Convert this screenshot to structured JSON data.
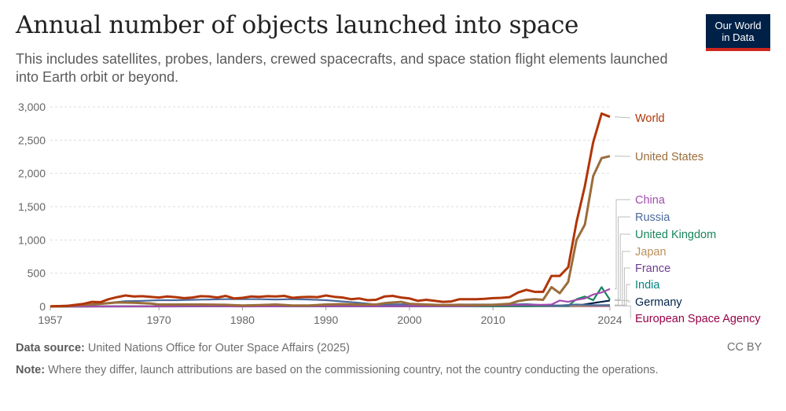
{
  "header": {
    "title": "Annual number of objects launched into space",
    "subtitle": "This includes satellites, probes, landers, crewed spacecrafts, and space station flight elements launched into Earth orbit or beyond.",
    "logo_line1": "Our World",
    "logo_line2": "in Data"
  },
  "footer": {
    "source_label": "Data source:",
    "source_text": "United Nations Office for Outer Space Affairs (2025)",
    "note_label": "Note:",
    "note_text": "Where they differ, launch attributions are based on the commissioning country, not the country conducting the operations.",
    "license": "CC BY"
  },
  "chart_data": {
    "type": "line",
    "title": "Annual number of objects launched into space",
    "xlabel": "",
    "ylabel": "",
    "xlim": [
      1957,
      2024
    ],
    "ylim": [
      0,
      3000
    ],
    "x_ticks": [
      "1957",
      "1970",
      "1980",
      "1990",
      "2000",
      "2010",
      "2024"
    ],
    "y_ticks": [
      "0",
      "500",
      "1,000",
      "1,500",
      "2,000",
      "2,500",
      "3,000"
    ],
    "y_tick_values": [
      0,
      500,
      1000,
      1500,
      2000,
      2500,
      3000
    ],
    "x_tick_values": [
      1957,
      1970,
      1980,
      1990,
      2000,
      2010,
      2024
    ],
    "grid": true,
    "series": [
      {
        "name": "World",
        "color": "#b13507",
        "points": [
          [
            1957,
            2
          ],
          [
            1959,
            10
          ],
          [
            1961,
            40
          ],
          [
            1962,
            70
          ],
          [
            1963,
            65
          ],
          [
            1964,
            110
          ],
          [
            1965,
            140
          ],
          [
            1966,
            165
          ],
          [
            1967,
            150
          ],
          [
            1968,
            155
          ],
          [
            1969,
            145
          ],
          [
            1970,
            135
          ],
          [
            1971,
            150
          ],
          [
            1972,
            140
          ],
          [
            1973,
            125
          ],
          [
            1974,
            135
          ],
          [
            1975,
            155
          ],
          [
            1976,
            150
          ],
          [
            1977,
            135
          ],
          [
            1978,
            160
          ],
          [
            1979,
            120
          ],
          [
            1980,
            130
          ],
          [
            1981,
            150
          ],
          [
            1982,
            145
          ],
          [
            1983,
            155
          ],
          [
            1984,
            150
          ],
          [
            1985,
            160
          ],
          [
            1986,
            130
          ],
          [
            1987,
            140
          ],
          [
            1988,
            145
          ],
          [
            1989,
            140
          ],
          [
            1990,
            165
          ],
          [
            1991,
            145
          ],
          [
            1992,
            135
          ],
          [
            1993,
            110
          ],
          [
            1994,
            120
          ],
          [
            1995,
            95
          ],
          [
            1996,
            100
          ],
          [
            1997,
            150
          ],
          [
            1998,
            160
          ],
          [
            1999,
            135
          ],
          [
            2000,
            120
          ],
          [
            2001,
            85
          ],
          [
            2002,
            100
          ],
          [
            2003,
            85
          ],
          [
            2004,
            70
          ],
          [
            2005,
            75
          ],
          [
            2006,
            110
          ],
          [
            2007,
            110
          ],
          [
            2008,
            110
          ],
          [
            2009,
            115
          ],
          [
            2010,
            125
          ],
          [
            2011,
            130
          ],
          [
            2012,
            140
          ],
          [
            2013,
            210
          ],
          [
            2014,
            250
          ],
          [
            2015,
            220
          ],
          [
            2016,
            220
          ],
          [
            2017,
            460
          ],
          [
            2018,
            460
          ],
          [
            2019,
            590
          ],
          [
            2020,
            1270
          ],
          [
            2021,
            1810
          ],
          [
            2022,
            2470
          ],
          [
            2023,
            2900
          ],
          [
            2024,
            2850
          ]
        ]
      },
      {
        "name": "United States",
        "color": "#9a6d3a",
        "points": [
          [
            1957,
            0
          ],
          [
            1959,
            10
          ],
          [
            1961,
            25
          ],
          [
            1963,
            40
          ],
          [
            1965,
            60
          ],
          [
            1967,
            55
          ],
          [
            1969,
            45
          ],
          [
            1970,
            30
          ],
          [
            1972,
            30
          ],
          [
            1975,
            30
          ],
          [
            1978,
            25
          ],
          [
            1980,
            15
          ],
          [
            1982,
            20
          ],
          [
            1984,
            30
          ],
          [
            1986,
            15
          ],
          [
            1988,
            15
          ],
          [
            1990,
            30
          ],
          [
            1992,
            35
          ],
          [
            1994,
            30
          ],
          [
            1996,
            30
          ],
          [
            1997,
            50
          ],
          [
            1998,
            60
          ],
          [
            1999,
            70
          ],
          [
            2000,
            40
          ],
          [
            2002,
            30
          ],
          [
            2004,
            20
          ],
          [
            2006,
            25
          ],
          [
            2008,
            20
          ],
          [
            2010,
            25
          ],
          [
            2012,
            40
          ],
          [
            2013,
            80
          ],
          [
            2014,
            100
          ],
          [
            2015,
            110
          ],
          [
            2016,
            100
          ],
          [
            2017,
            290
          ],
          [
            2018,
            200
          ],
          [
            2019,
            370
          ],
          [
            2020,
            1000
          ],
          [
            2021,
            1230
          ],
          [
            2022,
            1960
          ],
          [
            2023,
            2230
          ],
          [
            2024,
            2260
          ]
        ]
      },
      {
        "name": "China",
        "color": "#a34bb0",
        "points": [
          [
            1957,
            0
          ],
          [
            1970,
            1
          ],
          [
            1975,
            3
          ],
          [
            1980,
            0
          ],
          [
            1985,
            2
          ],
          [
            1990,
            5
          ],
          [
            1995,
            2
          ],
          [
            2000,
            5
          ],
          [
            2005,
            5
          ],
          [
            2008,
            10
          ],
          [
            2010,
            18
          ],
          [
            2012,
            20
          ],
          [
            2014,
            25
          ],
          [
            2016,
            25
          ],
          [
            2017,
            30
          ],
          [
            2018,
            90
          ],
          [
            2019,
            70
          ],
          [
            2020,
            100
          ],
          [
            2021,
            120
          ],
          [
            2022,
            180
          ],
          [
            2023,
            210
          ],
          [
            2024,
            265
          ]
        ]
      },
      {
        "name": "Russia",
        "color": "#4c6a9c",
        "points": [
          [
            1957,
            2
          ],
          [
            1960,
            20
          ],
          [
            1962,
            30
          ],
          [
            1964,
            55
          ],
          [
            1966,
            80
          ],
          [
            1968,
            85
          ],
          [
            1970,
            95
          ],
          [
            1972,
            95
          ],
          [
            1974,
            100
          ],
          [
            1976,
            105
          ],
          [
            1978,
            110
          ],
          [
            1980,
            110
          ],
          [
            1982,
            110
          ],
          [
            1984,
            105
          ],
          [
            1986,
            110
          ],
          [
            1988,
            105
          ],
          [
            1990,
            95
          ],
          [
            1992,
            75
          ],
          [
            1994,
            55
          ],
          [
            1996,
            30
          ],
          [
            1998,
            30
          ],
          [
            2000,
            35
          ],
          [
            2002,
            25
          ],
          [
            2004,
            25
          ],
          [
            2006,
            30
          ],
          [
            2008,
            30
          ],
          [
            2010,
            30
          ],
          [
            2012,
            30
          ],
          [
            2014,
            35
          ],
          [
            2016,
            20
          ],
          [
            2018,
            15
          ],
          [
            2020,
            30
          ],
          [
            2022,
            20
          ],
          [
            2024,
            20
          ]
        ]
      },
      {
        "name": "United Kingdom",
        "color": "#18855b",
        "points": [
          [
            1957,
            0
          ],
          [
            1962,
            1
          ],
          [
            1970,
            2
          ],
          [
            1980,
            1
          ],
          [
            1990,
            3
          ],
          [
            2000,
            3
          ],
          [
            2010,
            3
          ],
          [
            2014,
            5
          ],
          [
            2016,
            8
          ],
          [
            2018,
            12
          ],
          [
            2019,
            10
          ],
          [
            2020,
            110
          ],
          [
            2021,
            150
          ],
          [
            2022,
            95
          ],
          [
            2023,
            290
          ],
          [
            2024,
            100
          ]
        ]
      },
      {
        "name": "Japan",
        "color": "#bc8e5a",
        "points": [
          [
            1957,
            0
          ],
          [
            1970,
            2
          ],
          [
            1975,
            5
          ],
          [
            1980,
            5
          ],
          [
            1985,
            8
          ],
          [
            1990,
            10
          ],
          [
            1995,
            8
          ],
          [
            2000,
            5
          ],
          [
            2005,
            7
          ],
          [
            2010,
            10
          ],
          [
            2015,
            15
          ],
          [
            2020,
            12
          ],
          [
            2024,
            15
          ]
        ]
      },
      {
        "name": "France",
        "color": "#6d3e91",
        "points": [
          [
            1957,
            0
          ],
          [
            1965,
            2
          ],
          [
            1970,
            3
          ],
          [
            1980,
            3
          ],
          [
            1990,
            8
          ],
          [
            2000,
            10
          ],
          [
            2010,
            8
          ],
          [
            2020,
            10
          ],
          [
            2024,
            12
          ]
        ]
      },
      {
        "name": "India",
        "color": "#00847e",
        "points": [
          [
            1957,
            0
          ],
          [
            1975,
            1
          ],
          [
            1980,
            2
          ],
          [
            1990,
            3
          ],
          [
            2000,
            4
          ],
          [
            2010,
            6
          ],
          [
            2017,
            10
          ],
          [
            2020,
            8
          ],
          [
            2024,
            20
          ]
        ]
      },
      {
        "name": "Germany",
        "color": "#002147",
        "points": [
          [
            1957,
            0
          ],
          [
            1970,
            2
          ],
          [
            1980,
            2
          ],
          [
            1990,
            4
          ],
          [
            2000,
            6
          ],
          [
            2010,
            8
          ],
          [
            2020,
            12
          ],
          [
            2024,
            90
          ]
        ]
      },
      {
        "name": "European Space Agency",
        "color": "#970046",
        "points": [
          [
            1957,
            0
          ],
          [
            1975,
            1
          ],
          [
            1980,
            2
          ],
          [
            1990,
            3
          ],
          [
            2000,
            4
          ],
          [
            2010,
            5
          ],
          [
            2020,
            6
          ],
          [
            2024,
            8
          ]
        ]
      }
    ],
    "legend": [
      "World",
      "United States",
      "China",
      "Russia",
      "United Kingdom",
      "Japan",
      "France",
      "India",
      "Germany",
      "European Space Agency"
    ]
  }
}
